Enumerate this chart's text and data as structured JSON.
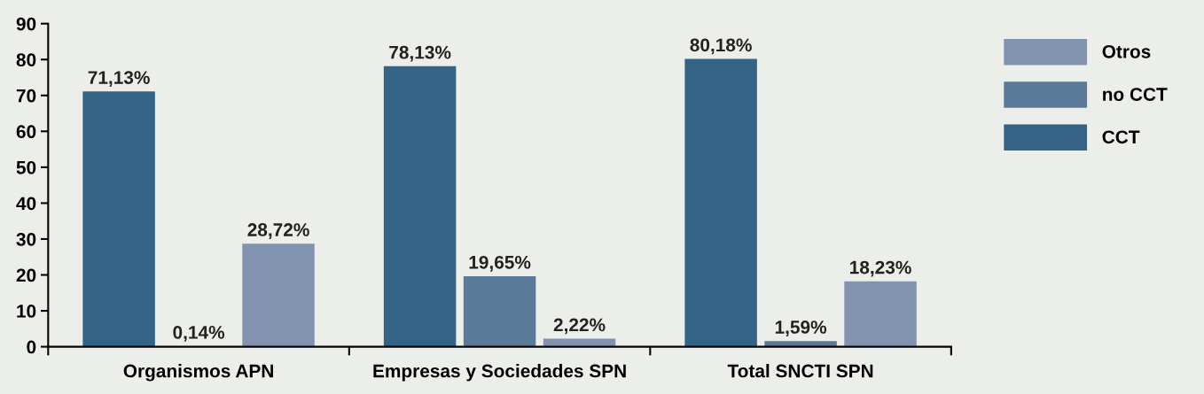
{
  "chart_data": {
    "type": "bar",
    "categories": [
      "Organismos APN",
      "Empresas y Sociedades SPN",
      "Total SNCTI SPN"
    ],
    "series": [
      {
        "name": "CCT",
        "color": "#336487",
        "values": [
          71.13,
          78.13,
          80.18
        ],
        "value_labels": [
          "71,13%",
          "78,13%",
          "80,18%"
        ]
      },
      {
        "name": "no CCT",
        "color": "#5b7a99",
        "values": [
          0.14,
          19.65,
          1.59
        ],
        "value_labels": [
          "0,14%",
          "19,65%",
          "1,59%"
        ]
      },
      {
        "name": "Otros",
        "color": "#8293b0",
        "values": [
          28.72,
          2.22,
          18.23
        ],
        "value_labels": [
          "28,72%",
          "2,22%",
          "18,23%"
        ]
      }
    ],
    "ylim": [
      0,
      90
    ],
    "yticks": [
      0,
      10,
      20,
      30,
      40,
      50,
      60,
      70,
      80,
      90
    ],
    "grid": false,
    "legend": "right"
  }
}
